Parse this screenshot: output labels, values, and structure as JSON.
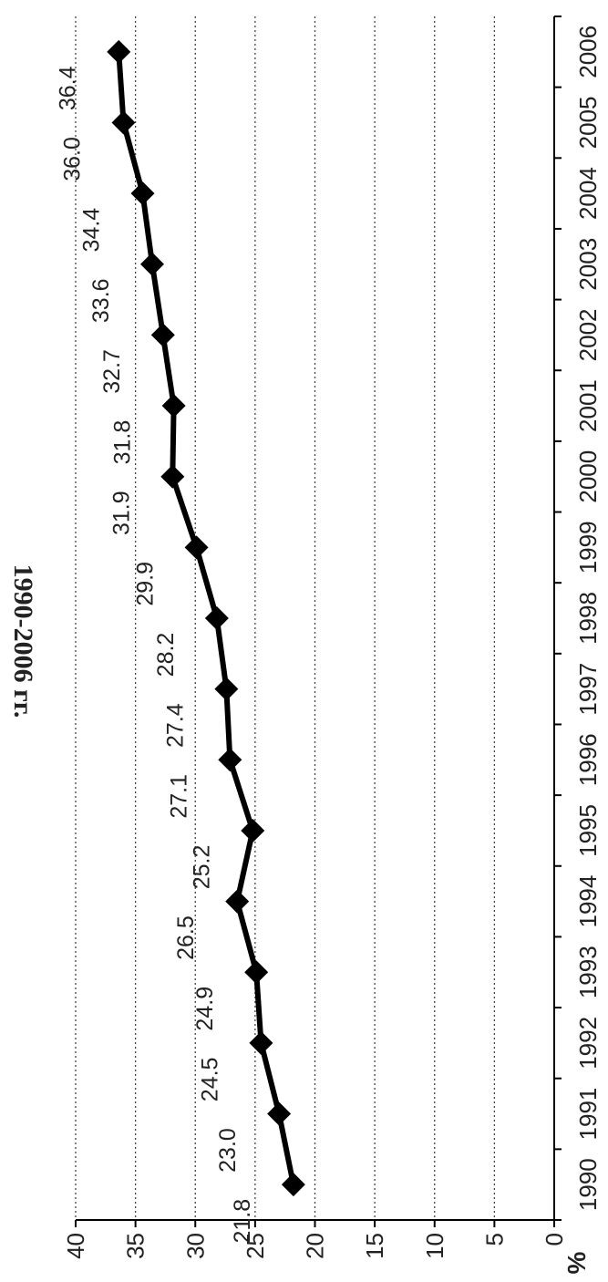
{
  "chart_data": {
    "type": "line",
    "title": "1990-2006 гг.",
    "ylabel": "%",
    "xlabel": "",
    "ylim": [
      0,
      40
    ],
    "y_ticks": [
      0,
      5,
      10,
      15,
      20,
      25,
      30,
      35,
      40
    ],
    "grid": "horizontal dotted at each y tick",
    "orientation": "rotated 90° counter-clockwise",
    "categories": [
      "1990",
      "1991",
      "1992",
      "1993",
      "1994",
      "1995",
      "1996",
      "1997",
      "1998",
      "1999",
      "2000",
      "2001",
      "2002",
      "2003",
      "2004",
      "2005",
      "2006"
    ],
    "series": [
      {
        "values": [
          21.8,
          23.0,
          24.5,
          24.9,
          26.5,
          25.2,
          27.1,
          27.4,
          28.2,
          29.9,
          31.9,
          31.8,
          32.7,
          33.6,
          34.4,
          36.0,
          36.4
        ],
        "labels": [
          "21.8",
          "23.0",
          "24.5",
          "24.9",
          "26.5",
          "25.2",
          "27.1",
          "27.4",
          "28.2",
          "29.9",
          "31.9",
          "31.8",
          "32.7",
          "33.6",
          "34.4",
          "36.0",
          "36.4"
        ],
        "color": "#000000",
        "marker": "diamond"
      }
    ]
  }
}
